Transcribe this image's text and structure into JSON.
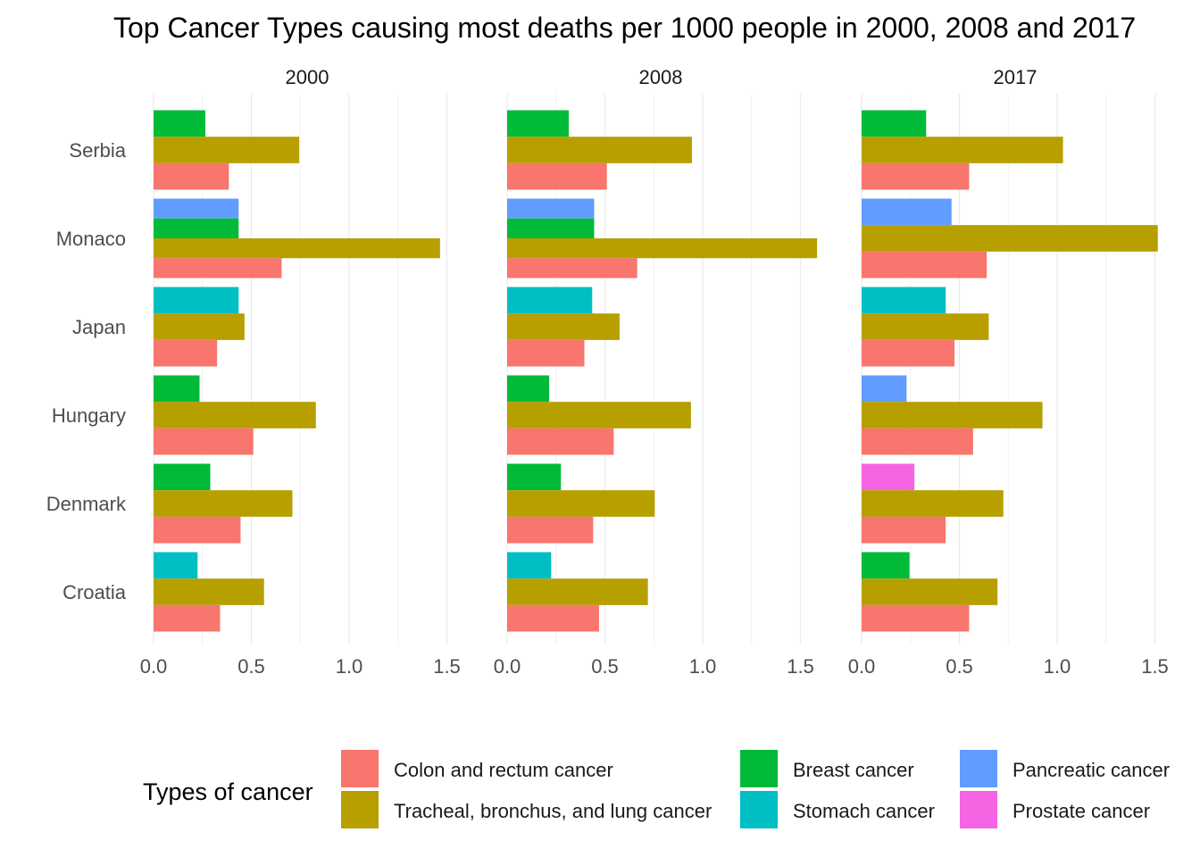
{
  "chart_data": {
    "type": "bar",
    "orientation": "horizontal",
    "title": "Top Cancer Types causing most deaths per 1000 people in 2000, 2008 and 2017",
    "facets": [
      "2000",
      "2008",
      "2017"
    ],
    "countries": [
      "Serbia",
      "Monaco",
      "Japan",
      "Hungary",
      "Denmark",
      "Croatia"
    ],
    "x_ticks": [
      "0.0",
      "0.5",
      "1.0",
      "1.5"
    ],
    "xlim": [
      0,
      1.6
    ],
    "grid": true,
    "legend": {
      "title": "Types of cancer",
      "position": "bottom",
      "items": [
        {
          "key": "colon",
          "label": "Colon and rectum cancer",
          "color": "#F8766D"
        },
        {
          "key": "lung",
          "label": "Tracheal, bronchus, and lung cancer",
          "color": "#B79F00"
        },
        {
          "key": "breast",
          "label": "Breast cancer",
          "color": "#00BA38"
        },
        {
          "key": "stomach",
          "label": "Stomach cancer",
          "color": "#00BFC4"
        },
        {
          "key": "pancreatic",
          "label": "Pancreatic cancer",
          "color": "#619CFF"
        },
        {
          "key": "prostate",
          "label": "Prostate cancer",
          "color": "#F564E3"
        }
      ]
    },
    "data": {
      "2000": {
        "Serbia": [
          [
            "breast",
            0.265
          ],
          [
            "lung",
            0.745
          ],
          [
            "colon",
            0.385
          ]
        ],
        "Monaco": [
          [
            "pancreatic",
            0.435
          ],
          [
            "breast",
            0.435
          ],
          [
            "lung",
            1.465
          ],
          [
            "colon",
            0.655
          ]
        ],
        "Japan": [
          [
            "stomach",
            0.435
          ],
          [
            "lung",
            0.465
          ],
          [
            "colon",
            0.325
          ]
        ],
        "Hungary": [
          [
            "breast",
            0.235
          ],
          [
            "lung",
            0.83
          ],
          [
            "colon",
            0.51
          ]
        ],
        "Denmark": [
          [
            "breast",
            0.29
          ],
          [
            "lung",
            0.71
          ],
          [
            "colon",
            0.445
          ]
        ],
        "Croatia": [
          [
            "stomach",
            0.225
          ],
          [
            "lung",
            0.565
          ],
          [
            "colon",
            0.34
          ]
        ]
      },
      "2008": {
        "Serbia": [
          [
            "breast",
            0.315
          ],
          [
            "lung",
            0.945
          ],
          [
            "colon",
            0.51
          ]
        ],
        "Monaco": [
          [
            "pancreatic",
            0.445
          ],
          [
            "breast",
            0.445
          ],
          [
            "lung",
            1.585
          ],
          [
            "colon",
            0.665
          ]
        ],
        "Japan": [
          [
            "stomach",
            0.435
          ],
          [
            "lung",
            0.575
          ],
          [
            "colon",
            0.395
          ]
        ],
        "Hungary": [
          [
            "breast",
            0.215
          ],
          [
            "lung",
            0.94
          ],
          [
            "colon",
            0.545
          ]
        ],
        "Denmark": [
          [
            "breast",
            0.275
          ],
          [
            "lung",
            0.755
          ],
          [
            "colon",
            0.44
          ]
        ],
        "Croatia": [
          [
            "stomach",
            0.225
          ],
          [
            "lung",
            0.72
          ],
          [
            "colon",
            0.47
          ]
        ]
      },
      "2017": {
        "Serbia": [
          [
            "breast",
            0.33
          ],
          [
            "lung",
            1.03
          ],
          [
            "colon",
            0.55
          ]
        ],
        "Monaco": [
          [
            "pancreatic",
            0.46
          ],
          [
            "lung",
            1.515
          ],
          [
            "colon",
            0.64
          ]
        ],
        "Japan": [
          [
            "stomach",
            0.43
          ],
          [
            "lung",
            0.65
          ],
          [
            "colon",
            0.475
          ]
        ],
        "Hungary": [
          [
            "pancreatic",
            0.23
          ],
          [
            "lung",
            0.925
          ],
          [
            "colon",
            0.57
          ]
        ],
        "Denmark": [
          [
            "prostate",
            0.27
          ],
          [
            "lung",
            0.725
          ],
          [
            "colon",
            0.43
          ]
        ],
        "Croatia": [
          [
            "breast",
            0.245
          ],
          [
            "lung",
            0.695
          ],
          [
            "colon",
            0.55
          ]
        ]
      }
    }
  }
}
